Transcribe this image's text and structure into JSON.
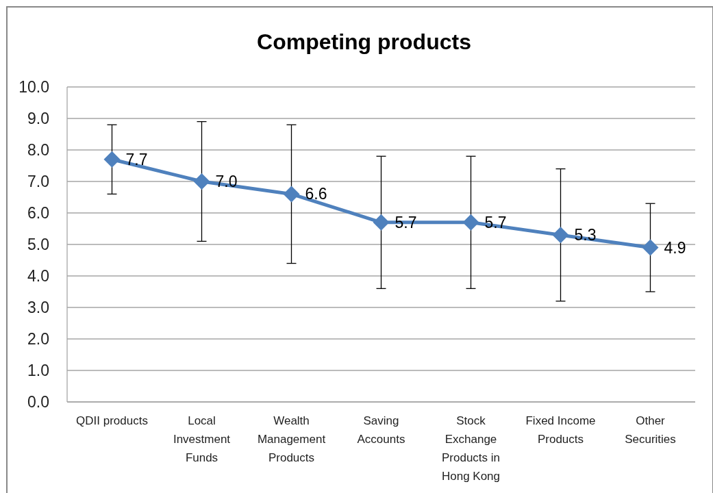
{
  "chart_data": {
    "type": "line",
    "title": "Competing products",
    "categories": [
      "QDII products",
      "Local Investment Funds",
      "Wealth Management Products",
      "Saving Accounts",
      "Stock Exchange Products in Hong Kong",
      "Fixed Income Products",
      "Other Securities"
    ],
    "series": [
      {
        "color": "#4f81bd",
        "values": [
          7.7,
          7.0,
          6.6,
          5.7,
          5.7,
          5.3,
          4.9
        ],
        "errors": [
          1.1,
          1.9,
          2.2,
          2.1,
          2.1,
          2.1,
          1.4
        ],
        "value_labels": [
          "7.7",
          "7.0",
          "6.6",
          "5.7",
          "5.7",
          "5.3",
          "4.9"
        ]
      }
    ],
    "ylim": [
      0,
      10
    ],
    "yticks": [
      {
        "value": 0,
        "label": "0.0"
      },
      {
        "value": 1,
        "label": "1.0"
      },
      {
        "value": 2,
        "label": "2.0"
      },
      {
        "value": 3,
        "label": "3.0"
      },
      {
        "value": 4,
        "label": "4.0"
      },
      {
        "value": 5,
        "label": "5.0"
      },
      {
        "value": 6,
        "label": "6.0"
      },
      {
        "value": 7,
        "label": "7.0"
      },
      {
        "value": 8,
        "label": "8.0"
      },
      {
        "value": 9,
        "label": "9.0"
      },
      {
        "value": 10,
        "label": "10.0"
      }
    ],
    "grid": "y",
    "marker": "diamond",
    "line_style": "solid"
  }
}
